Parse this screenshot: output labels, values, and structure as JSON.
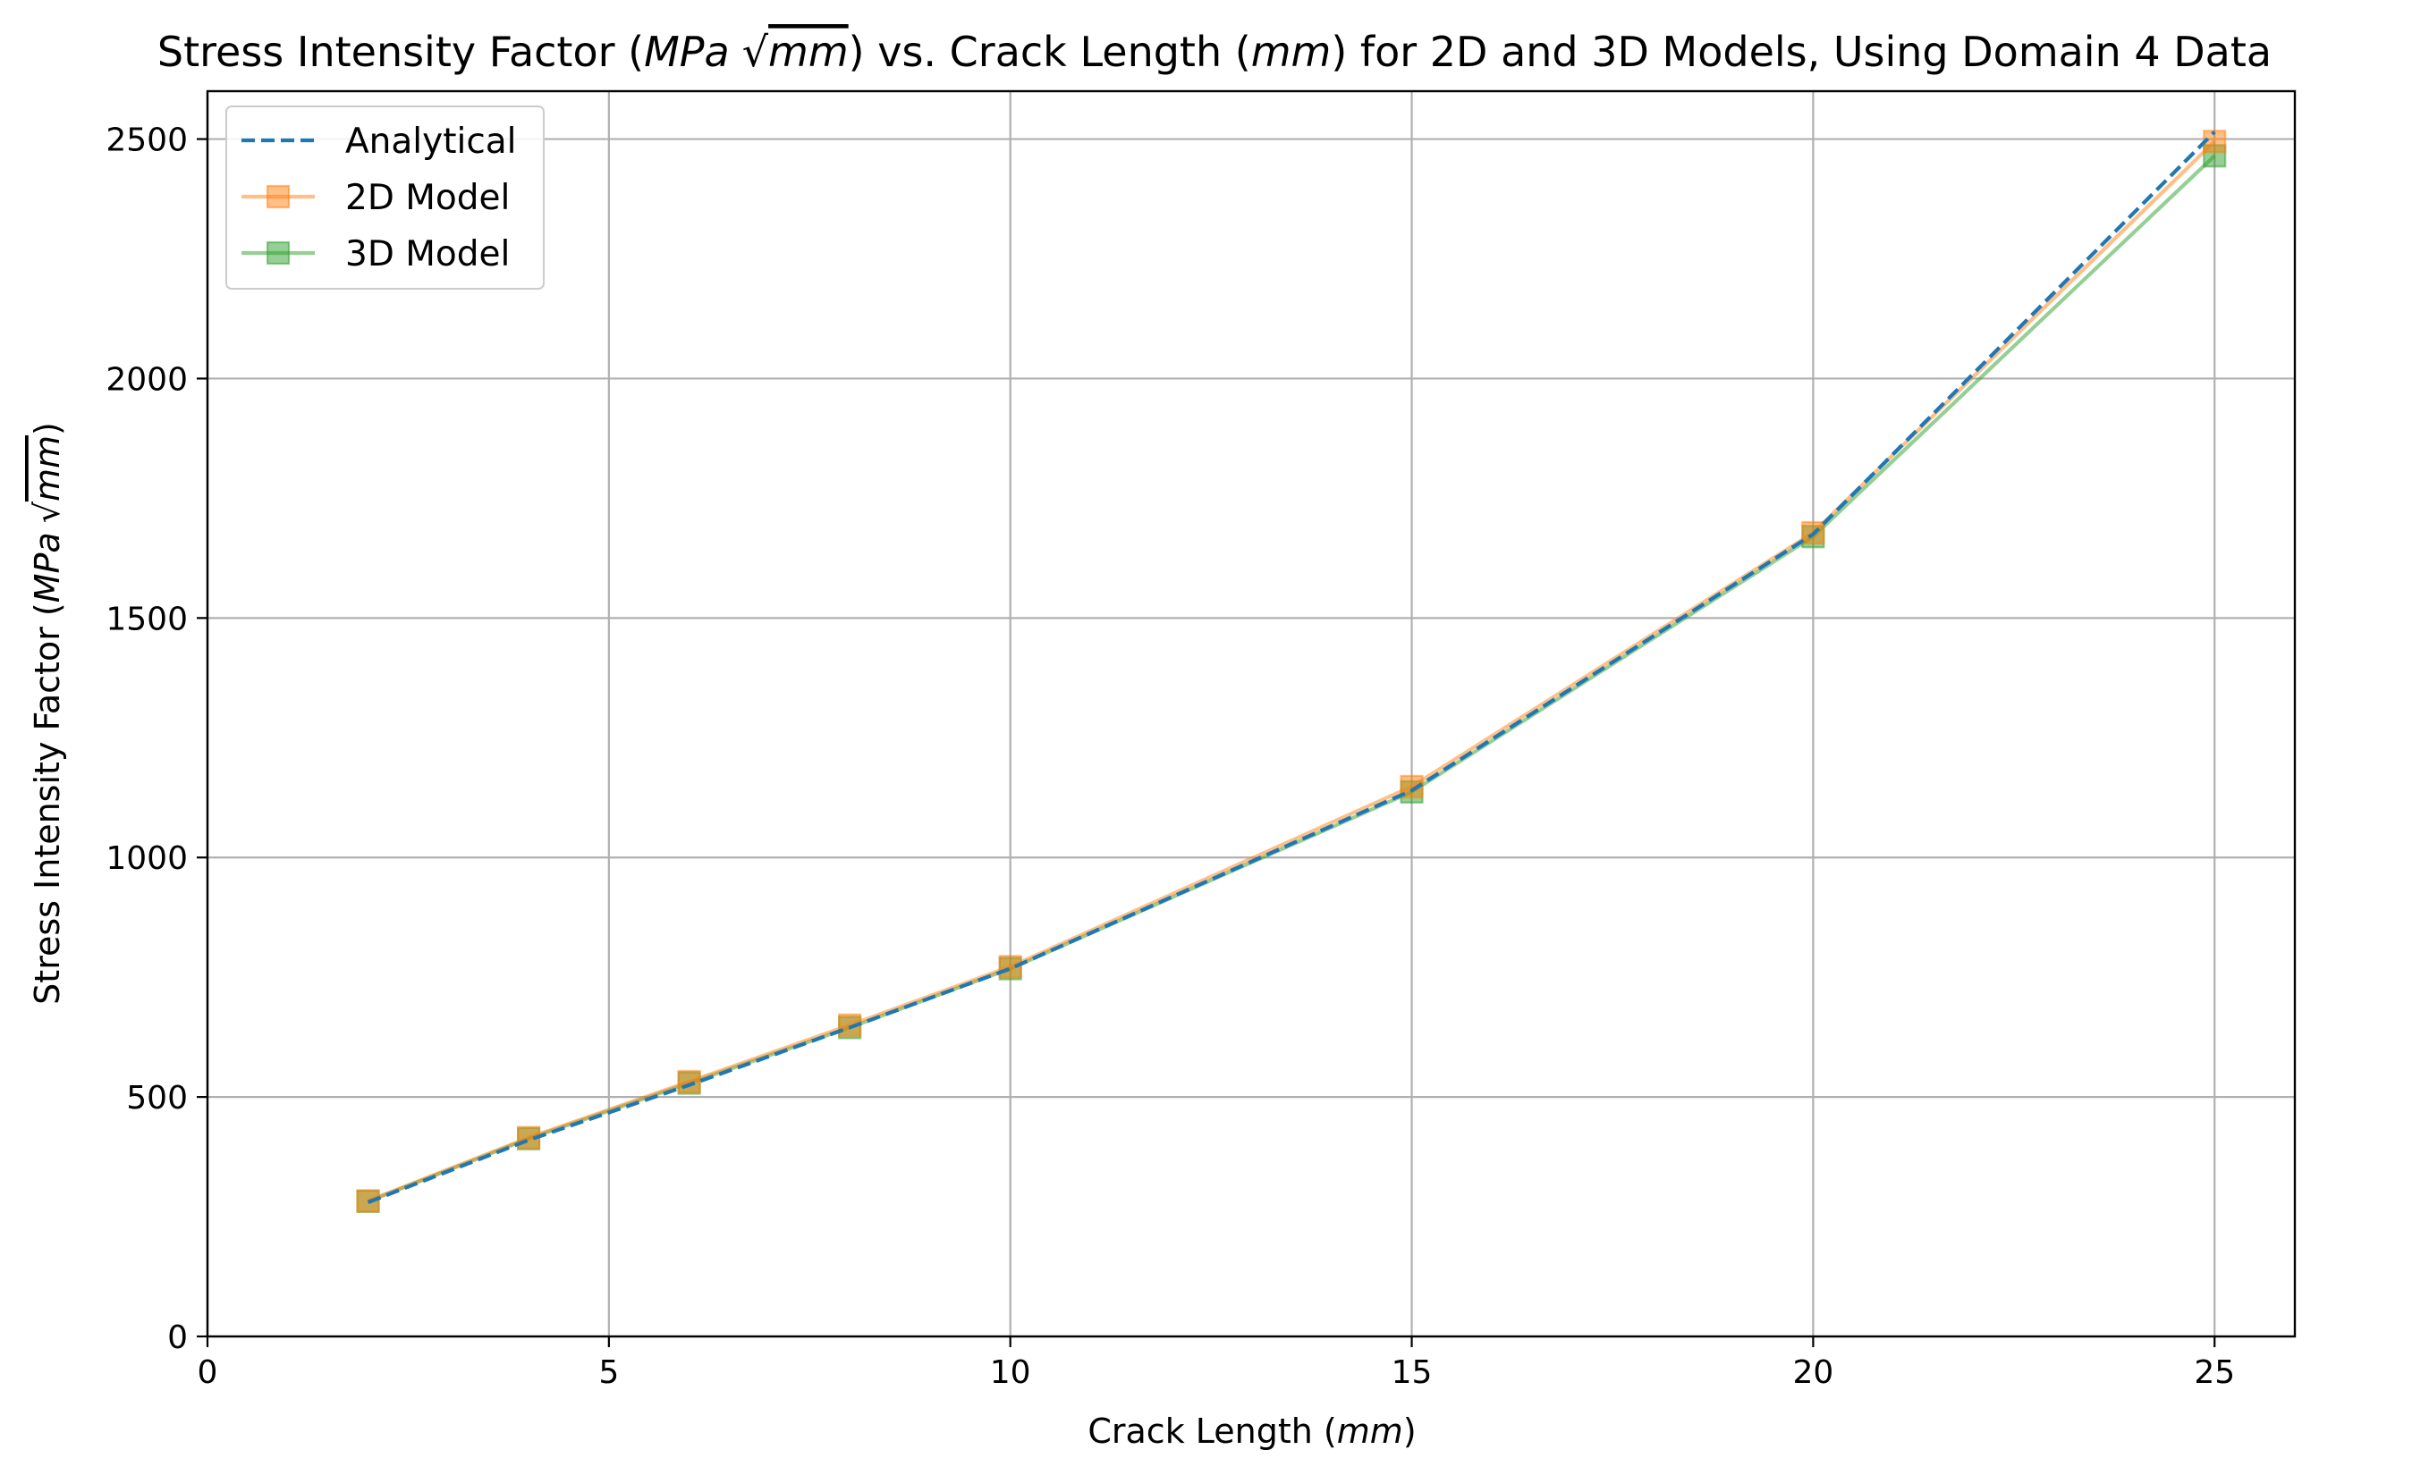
{
  "chart_data": {
    "type": "line",
    "title": {
      "prefix": "Stress Intensity Factor (",
      "unit1": "MPa",
      "sqrt_symbol": "√",
      "unit2": "mm",
      "middle": ") vs. Crack Length (",
      "xunit": "mm",
      "suffix": ") for 2D and 3D Models, Using Domain 4 Data"
    },
    "xlabel": {
      "prefix": "Crack Length (",
      "unit": "mm",
      "suffix": ")"
    },
    "ylabel": {
      "prefix": "Stress Intensity Factor (",
      "unit1": "MPa",
      "sqrt_symbol": "√",
      "unit2": "mm",
      "suffix": ")"
    },
    "xlim": [
      0,
      26
    ],
    "ylim": [
      0,
      2600
    ],
    "xticks": [
      0,
      5,
      10,
      15,
      20,
      25
    ],
    "yticks": [
      0,
      500,
      1000,
      1500,
      2000,
      2500
    ],
    "grid": true,
    "legend_position": "top-left",
    "series": [
      {
        "name": "Analytical",
        "style": "dashed",
        "marker": "none",
        "color": "#1f77b4",
        "x": [
          2,
          4,
          6,
          8,
          10,
          15,
          20,
          25
        ],
        "y": [
          280,
          410,
          525,
          645,
          768,
          1140,
          1675,
          2515
        ]
      },
      {
        "name": "2D Model",
        "style": "solid",
        "marker": "square",
        "color": "#ff7f0e",
        "x": [
          2,
          4,
          6,
          8,
          10,
          15,
          20,
          25
        ],
        "y": [
          283,
          415,
          532,
          650,
          772,
          1148,
          1678,
          2495
        ]
      },
      {
        "name": "3D Model",
        "style": "solid",
        "marker": "square",
        "color": "#2ca02c",
        "x": [
          2,
          4,
          6,
          8,
          10,
          15,
          20,
          25
        ],
        "y": [
          282,
          413,
          529,
          645,
          768,
          1137,
          1670,
          2465
        ]
      }
    ]
  }
}
